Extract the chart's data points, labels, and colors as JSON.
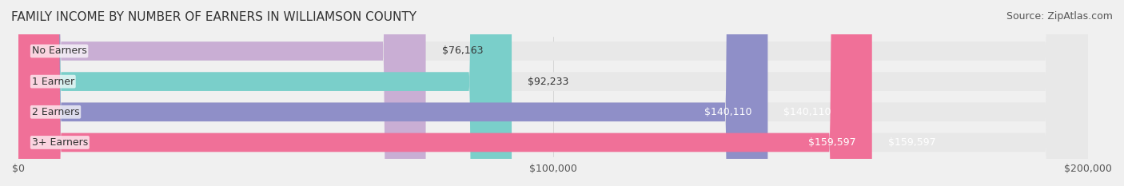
{
  "title": "FAMILY INCOME BY NUMBER OF EARNERS IN WILLIAMSON COUNTY",
  "source": "Source: ZipAtlas.com",
  "categories": [
    "No Earners",
    "1 Earner",
    "2 Earners",
    "3+ Earners"
  ],
  "values": [
    76163,
    92233,
    140110,
    159597
  ],
  "labels": [
    "$76,163",
    "$92,233",
    "$140,110",
    "$159,597"
  ],
  "bar_colors": [
    "#c9aed4",
    "#7acfca",
    "#8f8fc8",
    "#f07098"
  ],
  "label_colors": [
    "#555555",
    "#555555",
    "#ffffff",
    "#ffffff"
  ],
  "background_color": "#f0f0f0",
  "bar_bg_color": "#e8e8e8",
  "xlim": [
    0,
    200000
  ],
  "xticks": [
    0,
    100000,
    200000
  ],
  "xtick_labels": [
    "$0",
    "$100,000",
    "$200,000"
  ],
  "title_fontsize": 11,
  "source_fontsize": 9,
  "label_fontsize": 9,
  "category_fontsize": 9,
  "tick_fontsize": 9
}
